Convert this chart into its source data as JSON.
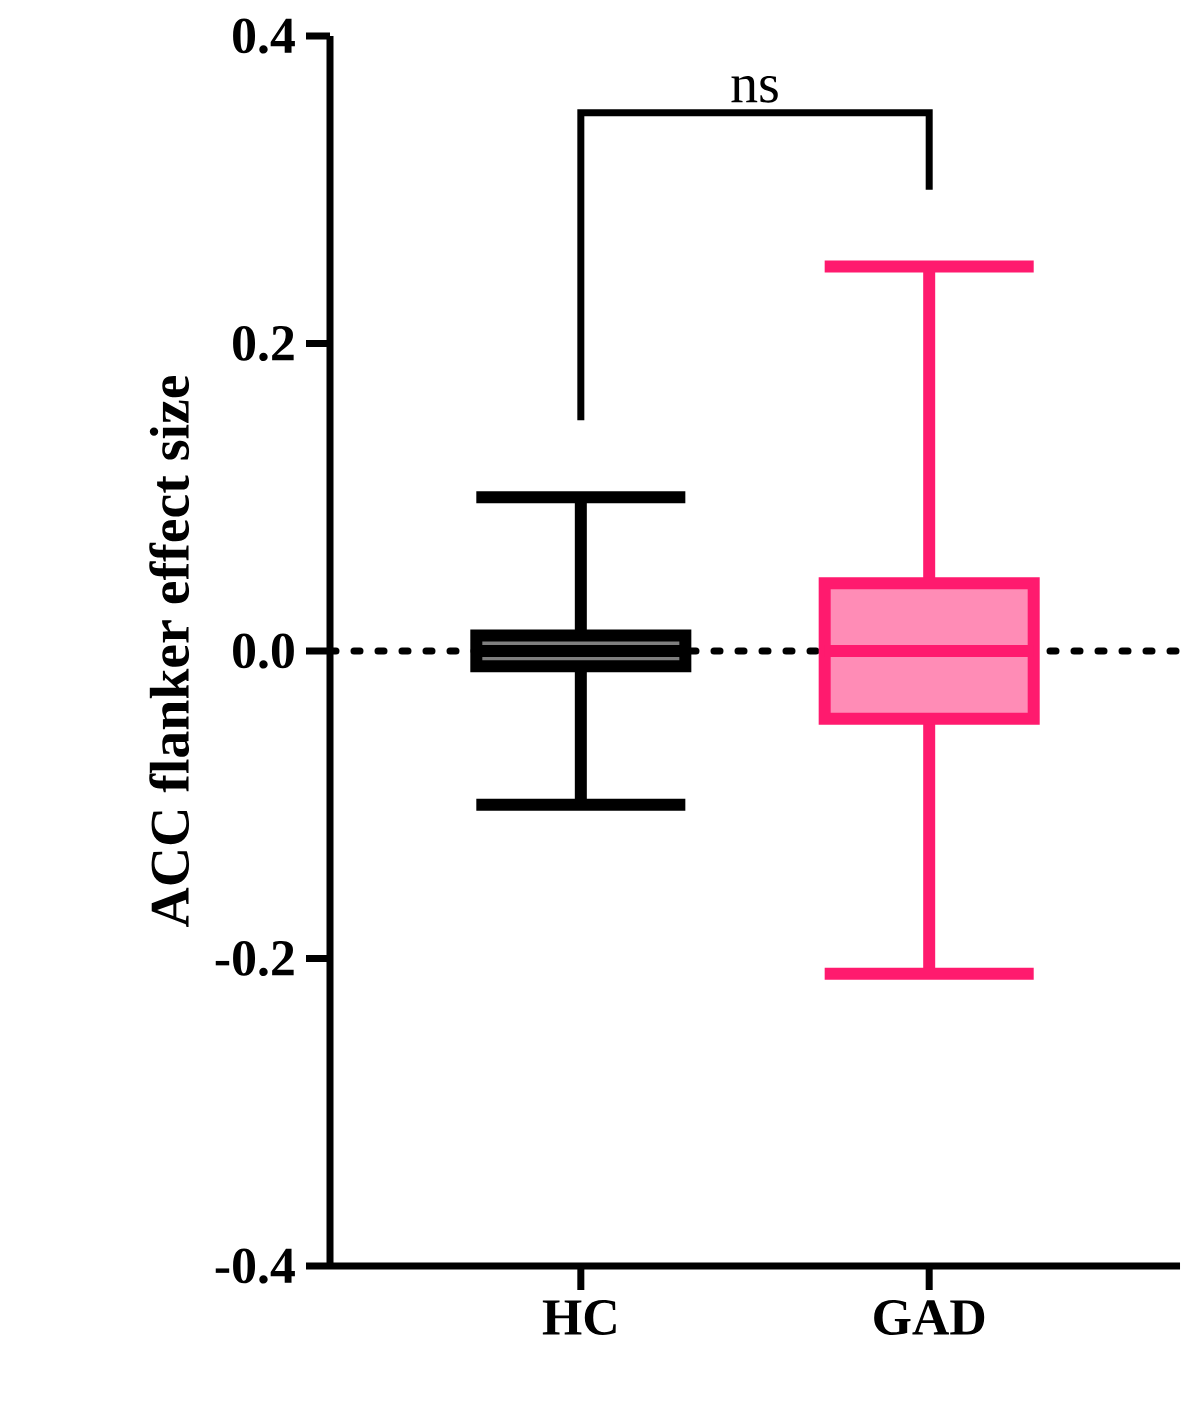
{
  "chart_data": {
    "type": "box",
    "ylabel": "ACC  flanker effect size",
    "categories": [
      "HC",
      "GAD"
    ],
    "boxes": [
      {
        "low": -0.1,
        "q1": -0.01,
        "median": 0,
        "q3": 0.01,
        "high": 0.1
      },
      {
        "low": -0.21,
        "q1": -0.044,
        "median": 0,
        "q3": 0.044,
        "high": 0.25
      }
    ],
    "colors": [
      "#000000",
      "#ff1a6e"
    ],
    "ylim": [
      -0.4,
      0.4
    ],
    "yticks": [
      {
        "value": -0.4,
        "label": "-0.4"
      },
      {
        "value": -0.2,
        "label": "-0.2"
      },
      {
        "value": 0,
        "label": "0.0"
      },
      {
        "value": 0.2,
        "label": "0.2"
      },
      {
        "value": 0.4,
        "label": "0.4"
      }
    ],
    "ref_lines": [
      {
        "axis": "y",
        "value": 0,
        "line_style": "dotted",
        "color": "#000000"
      }
    ],
    "annotations": [
      "ns"
    ],
    "grid": false
  }
}
